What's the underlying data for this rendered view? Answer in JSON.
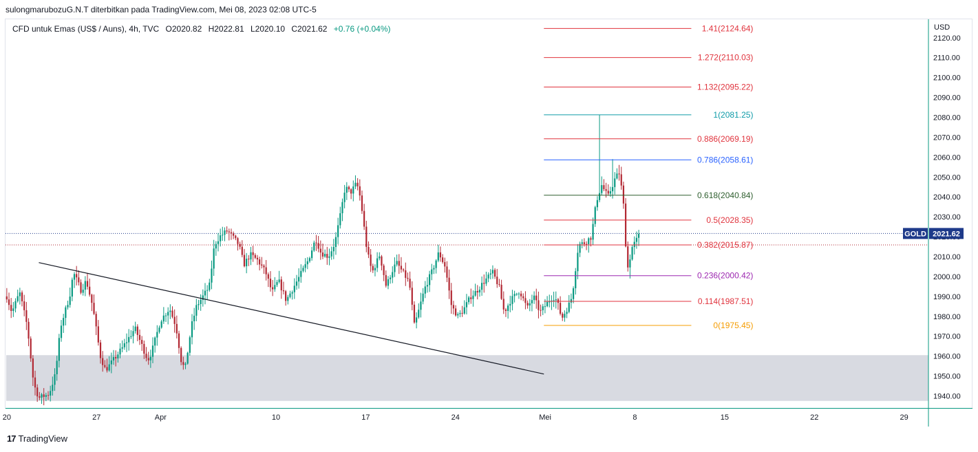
{
  "header": {
    "publisher_line": "sulongmarubozuG.N.T diterbitkan pada TradingView.com, Mei 08, 2023 02:08 UTC-5"
  },
  "legend": {
    "symbol": "CFD untuk Emas (US$ / Auns), 4h, TVC",
    "open": "O2020.82",
    "high": "H2022.81",
    "low": "L2020.10",
    "close": "C2021.62",
    "change": "+0.76 (+0.04%)"
  },
  "footer": {
    "brand": "TradingView",
    "brand_mark": "17"
  },
  "colors": {
    "up": "#089981",
    "down": "#b22833",
    "wick": "#131722",
    "zone": "#d1d4dc",
    "accent": "#1e3a8a"
  },
  "chart_data": {
    "type": "candlestick",
    "title": "",
    "currency_label": "USD",
    "price_axis": {
      "min": 1935,
      "max": 2130,
      "ticks": [
        1940,
        1950,
        1960,
        1970,
        1980,
        1990,
        2000,
        2010,
        2020,
        2030,
        2040,
        2050,
        2060,
        2070,
        2080,
        2090,
        2100,
        2110,
        2120
      ]
    },
    "time_axis": {
      "labels": [
        {
          "label": "20",
          "t": 0
        },
        {
          "label": "27",
          "t": 7
        },
        {
          "label": "Apr",
          "t": 12
        },
        {
          "label": "10",
          "t": 21
        },
        {
          "label": "17",
          "t": 28
        },
        {
          "label": "24",
          "t": 35
        },
        {
          "label": "Mei",
          "t": 42
        },
        {
          "label": "8",
          "t": 49
        },
        {
          "label": "15",
          "t": 56
        },
        {
          "label": "22",
          "t": 63
        },
        {
          "label": "29",
          "t": 70
        }
      ],
      "range_days": [
        -0.1,
        71.9
      ]
    },
    "current_price": {
      "symbol": "GOLD",
      "value": "2021.62",
      "price": 2021.62,
      "secondary_level": 2015.87
    },
    "support_zone": {
      "from": 1937.5,
      "to": 1960.5
    },
    "trendline": {
      "from": {
        "t": 2.5,
        "price": 2007
      },
      "to": {
        "t": 41.9,
        "price": 1951
      }
    },
    "fibonacci": {
      "start_t": 41.9,
      "end_t": 53.4,
      "levels": [
        {
          "label": "1.41(2124.64)",
          "price": 2124.64,
          "color": "#e0323c"
        },
        {
          "label": "1.272(2110.03)",
          "price": 2110.03,
          "color": "#e0323c"
        },
        {
          "label": "1.132(2095.22)",
          "price": 2095.22,
          "color": "#e0323c"
        },
        {
          "label": "1(2081.25)",
          "price": 2081.25,
          "color": "#0f9ba8"
        },
        {
          "label": "0.886(2069.19)",
          "price": 2069.19,
          "color": "#e0323c"
        },
        {
          "label": "0.786(2058.61)",
          "price": 2058.61,
          "color": "#2962ff"
        },
        {
          "label": "0.618(2040.84)",
          "price": 2040.84,
          "color": "#2e5e2e"
        },
        {
          "label": "0.5(2028.35)",
          "price": 2028.35,
          "color": "#e0323c"
        },
        {
          "label": "0.382(2015.87)",
          "price": 2015.87,
          "color": "#e0323c"
        },
        {
          "label": "0.236(2000.42)",
          "price": 2000.42,
          "color": "#9c27b0"
        },
        {
          "label": "0.114(1987.51)",
          "price": 1987.51,
          "color": "#e0323c"
        },
        {
          "label": "0(1975.45)",
          "price": 1975.45,
          "color": "#f59c00"
        }
      ]
    },
    "anchors": [
      {
        "t": 0,
        "p": 1990
      },
      {
        "t": 0.4,
        "p": 1982
      },
      {
        "t": 1,
        "p": 1992
      },
      {
        "t": 1.6,
        "p": 1975
      },
      {
        "t": 2.1,
        "p": 1946
      },
      {
        "t": 2.5,
        "p": 1939
      },
      {
        "t": 3.3,
        "p": 1941
      },
      {
        "t": 3.8,
        "p": 1951
      },
      {
        "t": 4.2,
        "p": 1975
      },
      {
        "t": 4.9,
        "p": 1990
      },
      {
        "t": 5.2,
        "p": 2002
      },
      {
        "t": 5.8,
        "p": 1993
      },
      {
        "t": 6.2,
        "p": 1998
      },
      {
        "t": 6.7,
        "p": 1985
      },
      {
        "t": 7.3,
        "p": 1960
      },
      {
        "t": 7.7,
        "p": 1953
      },
      {
        "t": 8.2,
        "p": 1957
      },
      {
        "t": 9,
        "p": 1964
      },
      {
        "t": 10,
        "p": 1974
      },
      {
        "t": 11,
        "p": 1958
      },
      {
        "t": 11.3,
        "p": 1962
      },
      {
        "t": 12,
        "p": 1978
      },
      {
        "t": 12.7,
        "p": 1984
      },
      {
        "t": 13.2,
        "p": 1975
      },
      {
        "t": 13.6,
        "p": 1958
      },
      {
        "t": 13.9,
        "p": 1953
      },
      {
        "t": 14.4,
        "p": 1975
      },
      {
        "t": 14.8,
        "p": 1985
      },
      {
        "t": 15.3,
        "p": 1990
      },
      {
        "t": 15.8,
        "p": 1995
      },
      {
        "t": 16.2,
        "p": 2016
      },
      {
        "t": 16.6,
        "p": 2020
      },
      {
        "t": 17.2,
        "p": 2023
      },
      {
        "t": 17.6,
        "p": 2020
      },
      {
        "t": 18.1,
        "p": 2016
      },
      {
        "t": 18.5,
        "p": 2006
      },
      {
        "t": 19,
        "p": 2011
      },
      {
        "t": 19.6,
        "p": 2008
      },
      {
        "t": 20.2,
        "p": 2002
      },
      {
        "t": 20.7,
        "p": 1992
      },
      {
        "t": 21.2,
        "p": 1998
      },
      {
        "t": 21.8,
        "p": 1988
      },
      {
        "t": 22.4,
        "p": 1995
      },
      {
        "t": 23,
        "p": 2002
      },
      {
        "t": 23.5,
        "p": 2008
      },
      {
        "t": 24.1,
        "p": 2019
      },
      {
        "t": 24.5,
        "p": 2012
      },
      {
        "t": 25.1,
        "p": 2010
      },
      {
        "t": 25.6,
        "p": 2017
      },
      {
        "t": 26,
        "p": 2030
      },
      {
        "t": 26.4,
        "p": 2045
      },
      {
        "t": 26.8,
        "p": 2042
      },
      {
        "t": 27.3,
        "p": 2047
      },
      {
        "t": 27.6,
        "p": 2039
      },
      {
        "t": 28.1,
        "p": 2013
      },
      {
        "t": 28.5,
        "p": 2002
      },
      {
        "t": 29.1,
        "p": 2011
      },
      {
        "t": 29.6,
        "p": 1995
      },
      {
        "t": 30,
        "p": 2002
      },
      {
        "t": 30.4,
        "p": 2007
      },
      {
        "t": 31,
        "p": 2001
      },
      {
        "t": 31.4,
        "p": 1997
      },
      {
        "t": 31.8,
        "p": 1975
      },
      {
        "t": 32.1,
        "p": 1982
      },
      {
        "t": 32.6,
        "p": 1994
      },
      {
        "t": 33.2,
        "p": 2003
      },
      {
        "t": 33.7,
        "p": 2012
      },
      {
        "t": 34.2,
        "p": 2005
      },
      {
        "t": 34.7,
        "p": 1985
      },
      {
        "t": 35.2,
        "p": 1980
      },
      {
        "t": 35.6,
        "p": 1983
      },
      {
        "t": 36.2,
        "p": 1990
      },
      {
        "t": 36.7,
        "p": 1993
      },
      {
        "t": 37.3,
        "p": 1998
      },
      {
        "t": 37.9,
        "p": 2002
      },
      {
        "t": 38.4,
        "p": 1995
      },
      {
        "t": 38.8,
        "p": 1982
      },
      {
        "t": 39.3,
        "p": 1988
      },
      {
        "t": 40,
        "p": 1993
      },
      {
        "t": 40.6,
        "p": 1984
      },
      {
        "t": 41.1,
        "p": 1990
      },
      {
        "t": 41.6,
        "p": 1982
      },
      {
        "t": 42.2,
        "p": 1987
      },
      {
        "t": 42.6,
        "p": 1990
      },
      {
        "t": 42.9,
        "p": 1988
      },
      {
        "t": 43.3,
        "p": 1979
      },
      {
        "t": 43.8,
        "p": 1985
      },
      {
        "t": 44.1,
        "p": 1990
      },
      {
        "t": 44.6,
        "p": 2016
      },
      {
        "t": 45.1,
        "p": 2017
      },
      {
        "t": 45.6,
        "p": 2020
      },
      {
        "t": 46,
        "p": 2038
      },
      {
        "t": 46.4,
        "p": 2046
      },
      {
        "t": 46.9,
        "p": 2040
      },
      {
        "t": 47.5,
        "p": 2050
      },
      {
        "t": 47.8,
        "p": 2052
      },
      {
        "t": 48.1,
        "p": 2037
      },
      {
        "t": 48.4,
        "p": 2003
      },
      {
        "t": 48.8,
        "p": 2015
      },
      {
        "t": 49.1,
        "p": 2018
      },
      {
        "t": 49.4,
        "p": 2021.62
      }
    ],
    "candle_step_days": 0.17
  }
}
